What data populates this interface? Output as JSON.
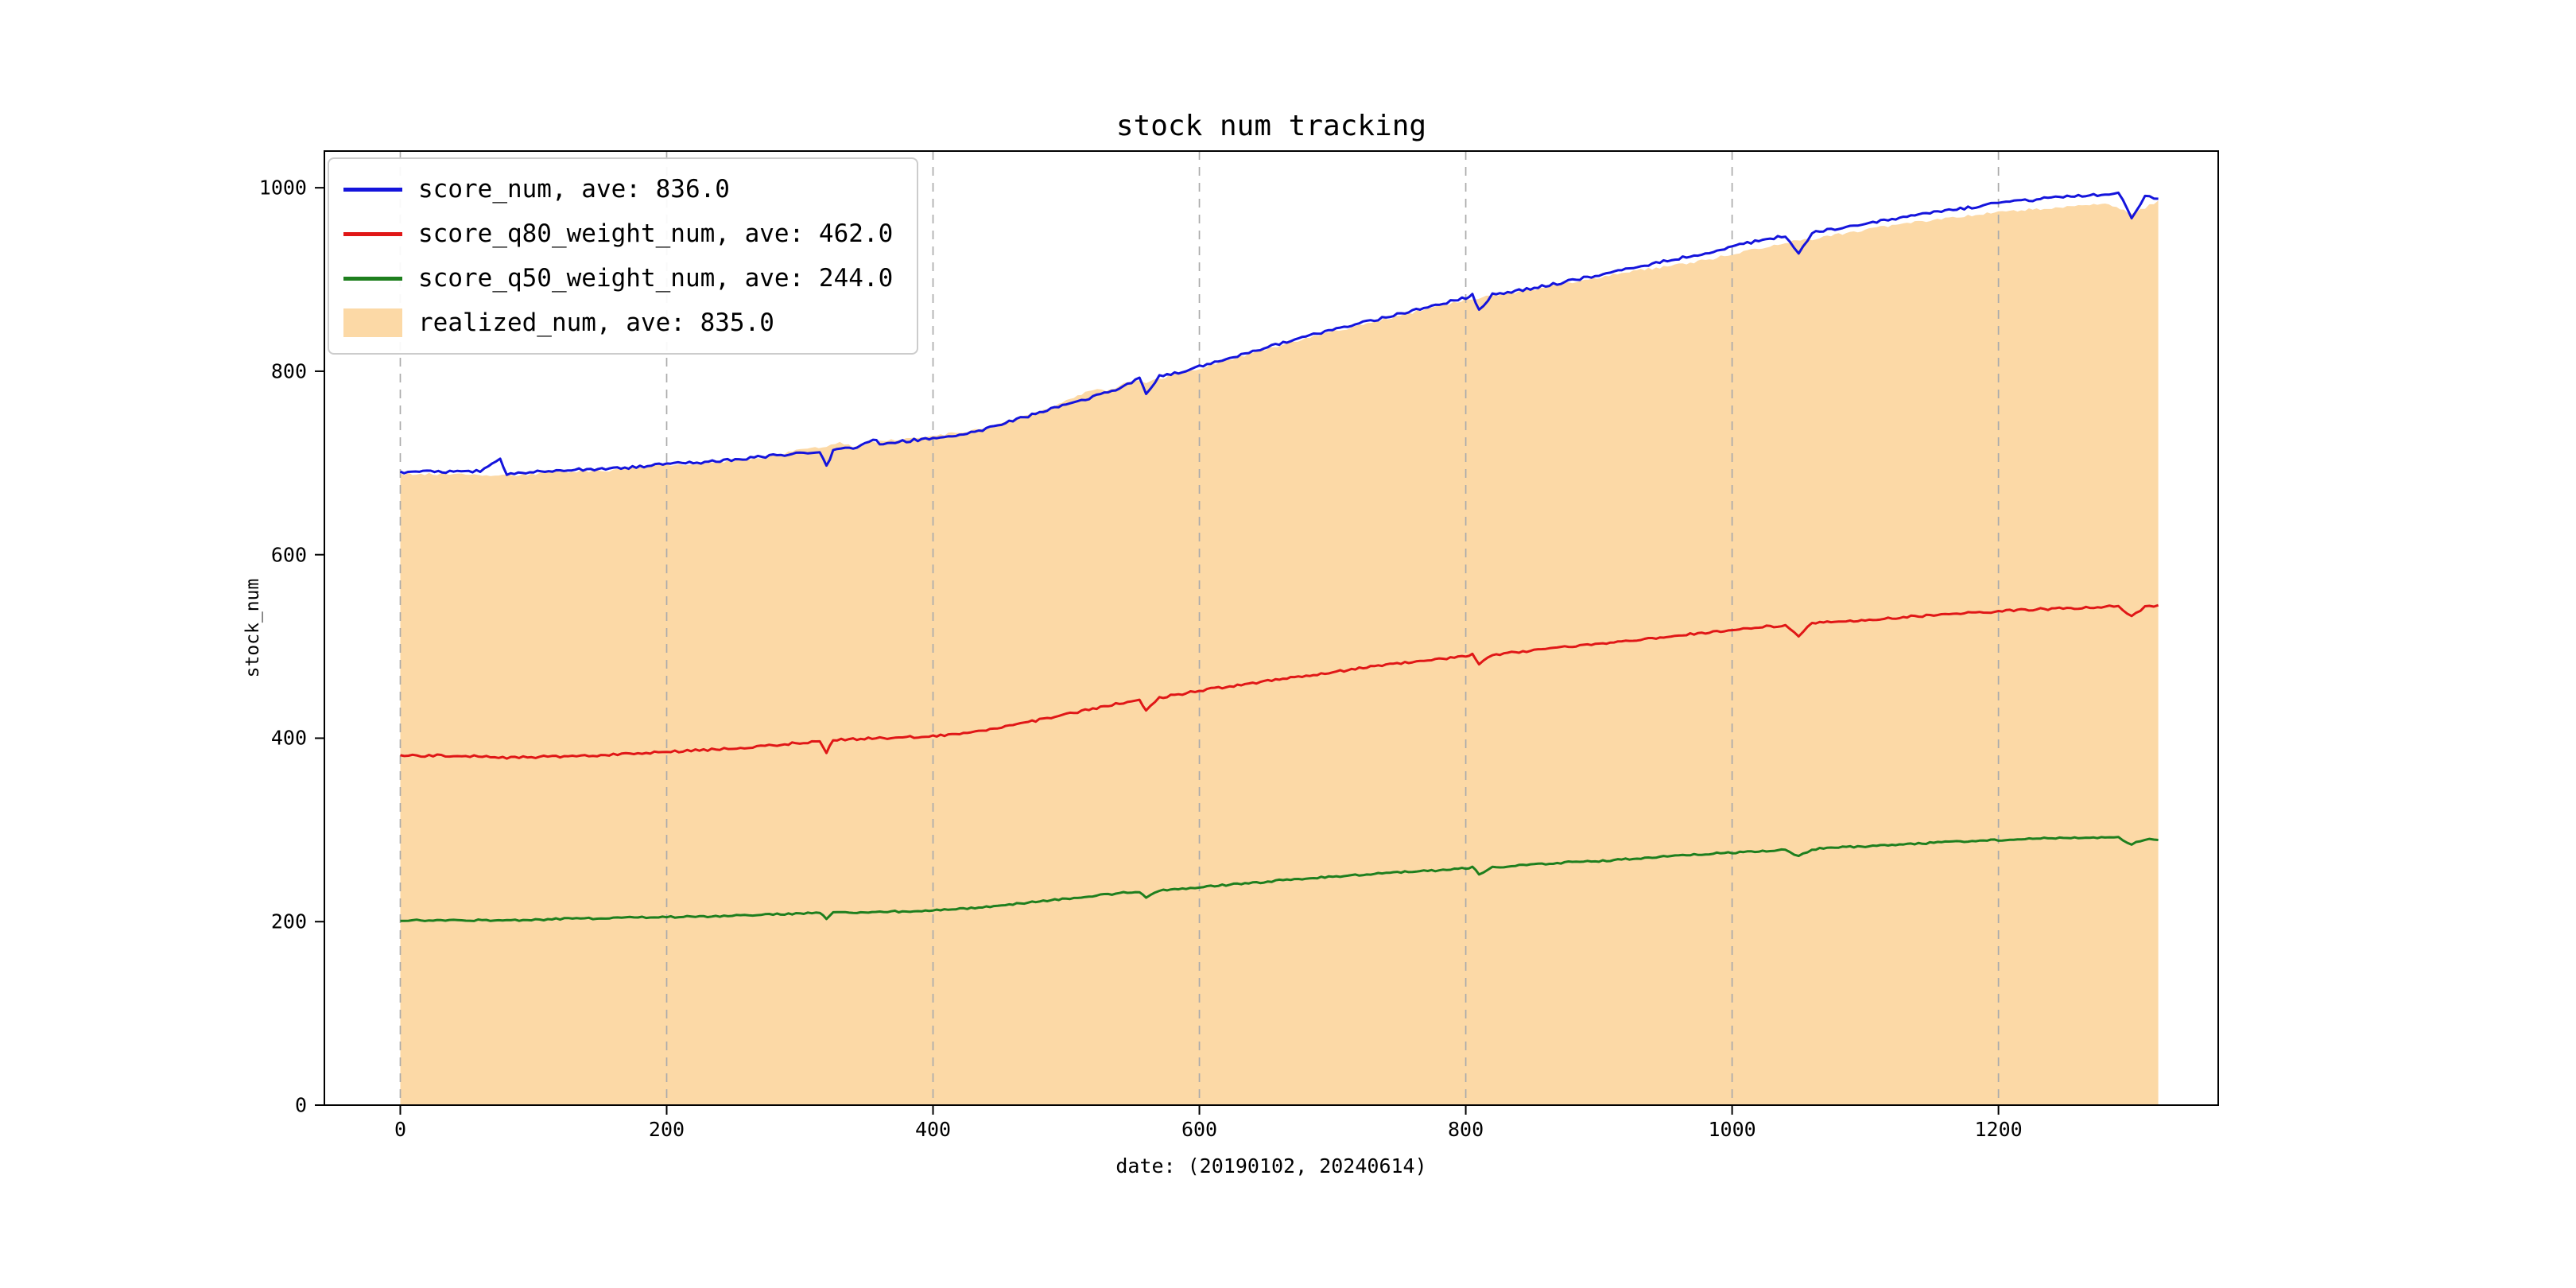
{
  "chart_data": {
    "type": "line",
    "title": "stock num tracking",
    "xlabel": "date: (20190102, 20240614)",
    "ylabel": "stock_num",
    "xlim": [
      -57,
      1365
    ],
    "ylim": [
      0,
      1040
    ],
    "x_ticks": [
      0,
      200,
      400,
      600,
      800,
      1000,
      1200
    ],
    "y_ticks": [
      0,
      200,
      400,
      600,
      800,
      1000
    ],
    "grid": {
      "vertical_dashed": true,
      "color": "#ababab"
    },
    "legend_position": "upper left",
    "series": [
      {
        "name": "score_num, ave: 836.0",
        "type": "line",
        "color": "#1414dc",
        "points": [
          [
            0,
            690
          ],
          [
            20,
            691
          ],
          [
            40,
            690
          ],
          [
            60,
            691
          ],
          [
            75,
            704
          ],
          [
            80,
            687
          ],
          [
            100,
            691
          ],
          [
            120,
            692
          ],
          [
            140,
            693
          ],
          [
            160,
            694
          ],
          [
            180,
            696
          ],
          [
            200,
            699
          ],
          [
            220,
            700
          ],
          [
            240,
            702
          ],
          [
            260,
            705
          ],
          [
            280,
            708
          ],
          [
            300,
            711
          ],
          [
            315,
            713
          ],
          [
            320,
            696
          ],
          [
            325,
            714
          ],
          [
            340,
            716
          ],
          [
            355,
            726
          ],
          [
            360,
            721
          ],
          [
            380,
            724
          ],
          [
            400,
            727
          ],
          [
            420,
            731
          ],
          [
            440,
            737
          ],
          [
            460,
            746
          ],
          [
            480,
            755
          ],
          [
            500,
            764
          ],
          [
            520,
            772
          ],
          [
            540,
            781
          ],
          [
            555,
            793
          ],
          [
            560,
            776
          ],
          [
            570,
            795
          ],
          [
            590,
            800
          ],
          [
            600,
            805
          ],
          [
            620,
            813
          ],
          [
            640,
            822
          ],
          [
            660,
            830
          ],
          [
            680,
            838
          ],
          [
            700,
            845
          ],
          [
            720,
            852
          ],
          [
            740,
            859
          ],
          [
            760,
            866
          ],
          [
            780,
            873
          ],
          [
            800,
            880
          ],
          [
            805,
            884
          ],
          [
            810,
            866
          ],
          [
            820,
            884
          ],
          [
            840,
            888
          ],
          [
            860,
            893
          ],
          [
            880,
            899
          ],
          [
            900,
            905
          ],
          [
            920,
            911
          ],
          [
            940,
            917
          ],
          [
            960,
            923
          ],
          [
            980,
            929
          ],
          [
            1000,
            936
          ],
          [
            1020,
            942
          ],
          [
            1040,
            948
          ],
          [
            1050,
            927
          ],
          [
            1060,
            951
          ],
          [
            1080,
            956
          ],
          [
            1100,
            961
          ],
          [
            1120,
            966
          ],
          [
            1140,
            971
          ],
          [
            1160,
            975
          ],
          [
            1180,
            979
          ],
          [
            1200,
            983
          ],
          [
            1220,
            986
          ],
          [
            1240,
            989
          ],
          [
            1260,
            991
          ],
          [
            1280,
            993
          ],
          [
            1290,
            996
          ],
          [
            1300,
            966
          ],
          [
            1310,
            991
          ],
          [
            1320,
            988
          ]
        ]
      },
      {
        "name": "score_q80_weight_num, ave: 462.0",
        "type": "line",
        "color": "#e01717",
        "points": [
          [
            0,
            381
          ],
          [
            40,
            381
          ],
          [
            80,
            379
          ],
          [
            120,
            380
          ],
          [
            160,
            382
          ],
          [
            200,
            385
          ],
          [
            240,
            388
          ],
          [
            280,
            392
          ],
          [
            300,
            395
          ],
          [
            315,
            397
          ],
          [
            320,
            385
          ],
          [
            325,
            398
          ],
          [
            340,
            399
          ],
          [
            360,
            400
          ],
          [
            380,
            401
          ],
          [
            400,
            402
          ],
          [
            420,
            405
          ],
          [
            440,
            409
          ],
          [
            460,
            414
          ],
          [
            480,
            420
          ],
          [
            500,
            426
          ],
          [
            520,
            432
          ],
          [
            540,
            438
          ],
          [
            555,
            442
          ],
          [
            560,
            431
          ],
          [
            570,
            444
          ],
          [
            590,
            449
          ],
          [
            600,
            452
          ],
          [
            620,
            456
          ],
          [
            640,
            460
          ],
          [
            660,
            464
          ],
          [
            680,
            468
          ],
          [
            700,
            472
          ],
          [
            720,
            476
          ],
          [
            740,
            480
          ],
          [
            760,
            483
          ],
          [
            780,
            486
          ],
          [
            800,
            489
          ],
          [
            805,
            491
          ],
          [
            810,
            481
          ],
          [
            820,
            491
          ],
          [
            840,
            494
          ],
          [
            860,
            497
          ],
          [
            880,
            500
          ],
          [
            900,
            503
          ],
          [
            920,
            506
          ],
          [
            940,
            509
          ],
          [
            960,
            512
          ],
          [
            980,
            515
          ],
          [
            1000,
            518
          ],
          [
            1020,
            521
          ],
          [
            1040,
            523
          ],
          [
            1050,
            512
          ],
          [
            1060,
            525
          ],
          [
            1080,
            527
          ],
          [
            1100,
            529
          ],
          [
            1120,
            531
          ],
          [
            1140,
            533
          ],
          [
            1160,
            535
          ],
          [
            1180,
            537
          ],
          [
            1200,
            538
          ],
          [
            1220,
            540
          ],
          [
            1240,
            541
          ],
          [
            1260,
            542
          ],
          [
            1280,
            543
          ],
          [
            1290,
            544
          ],
          [
            1300,
            533
          ],
          [
            1310,
            543
          ],
          [
            1320,
            545
          ]
        ]
      },
      {
        "name": "score_q50_weight_num, ave: 244.0",
        "type": "line",
        "color": "#1e7f1e",
        "points": [
          [
            0,
            201
          ],
          [
            40,
            202
          ],
          [
            80,
            201
          ],
          [
            120,
            203
          ],
          [
            160,
            204
          ],
          [
            200,
            205
          ],
          [
            240,
            206
          ],
          [
            280,
            208
          ],
          [
            300,
            209
          ],
          [
            315,
            210
          ],
          [
            320,
            203
          ],
          [
            325,
            210
          ],
          [
            340,
            210
          ],
          [
            360,
            211
          ],
          [
            380,
            211
          ],
          [
            400,
            212
          ],
          [
            420,
            214
          ],
          [
            440,
            216
          ],
          [
            460,
            219
          ],
          [
            480,
            222
          ],
          [
            500,
            225
          ],
          [
            520,
            228
          ],
          [
            540,
            231
          ],
          [
            555,
            233
          ],
          [
            560,
            227
          ],
          [
            570,
            234
          ],
          [
            590,
            236
          ],
          [
            600,
            238
          ],
          [
            620,
            240
          ],
          [
            640,
            242
          ],
          [
            660,
            245
          ],
          [
            680,
            247
          ],
          [
            700,
            249
          ],
          [
            720,
            251
          ],
          [
            740,
            253
          ],
          [
            760,
            255
          ],
          [
            780,
            256
          ],
          [
            800,
            258
          ],
          [
            805,
            259
          ],
          [
            810,
            252
          ],
          [
            820,
            259
          ],
          [
            840,
            261
          ],
          [
            860,
            263
          ],
          [
            880,
            265
          ],
          [
            900,
            266
          ],
          [
            920,
            268
          ],
          [
            940,
            270
          ],
          [
            960,
            272
          ],
          [
            980,
            274
          ],
          [
            1000,
            275
          ],
          [
            1020,
            277
          ],
          [
            1040,
            278
          ],
          [
            1050,
            271
          ],
          [
            1060,
            279
          ],
          [
            1080,
            281
          ],
          [
            1100,
            282
          ],
          [
            1120,
            284
          ],
          [
            1140,
            285
          ],
          [
            1160,
            287
          ],
          [
            1180,
            288
          ],
          [
            1200,
            289
          ],
          [
            1220,
            290
          ],
          [
            1240,
            291
          ],
          [
            1260,
            291
          ],
          [
            1280,
            292
          ],
          [
            1290,
            292
          ],
          [
            1300,
            284
          ],
          [
            1310,
            290
          ],
          [
            1320,
            289
          ]
        ]
      },
      {
        "name": "realized_num, ave: 835.0",
        "type": "area",
        "color": "#fcd9a6",
        "points": [
          [
            0,
            688
          ],
          [
            40,
            688
          ],
          [
            80,
            686
          ],
          [
            120,
            690
          ],
          [
            160,
            692
          ],
          [
            200,
            698
          ],
          [
            240,
            701
          ],
          [
            260,
            704
          ],
          [
            280,
            708
          ],
          [
            300,
            714
          ],
          [
            320,
            718
          ],
          [
            330,
            722
          ],
          [
            340,
            718
          ],
          [
            360,
            724
          ],
          [
            380,
            727
          ],
          [
            400,
            730
          ],
          [
            420,
            733
          ],
          [
            440,
            738
          ],
          [
            460,
            747
          ],
          [
            480,
            756
          ],
          [
            500,
            768
          ],
          [
            520,
            780
          ],
          [
            530,
            778
          ],
          [
            540,
            784
          ],
          [
            550,
            790
          ],
          [
            560,
            788
          ],
          [
            580,
            796
          ],
          [
            600,
            803
          ],
          [
            640,
            820
          ],
          [
            680,
            836
          ],
          [
            720,
            850
          ],
          [
            760,
            864
          ],
          [
            800,
            878
          ],
          [
            840,
            886
          ],
          [
            880,
            897
          ],
          [
            920,
            908
          ],
          [
            940,
            912
          ],
          [
            960,
            916
          ],
          [
            980,
            921
          ],
          [
            1000,
            928
          ],
          [
            1020,
            934
          ],
          [
            1040,
            940
          ],
          [
            1060,
            944
          ],
          [
            1080,
            949
          ],
          [
            1100,
            954
          ],
          [
            1120,
            959
          ],
          [
            1140,
            963
          ],
          [
            1160,
            967
          ],
          [
            1180,
            970
          ],
          [
            1200,
            973
          ],
          [
            1220,
            976
          ],
          [
            1240,
            978
          ],
          [
            1260,
            980
          ],
          [
            1280,
            982
          ],
          [
            1300,
            972
          ],
          [
            1310,
            978
          ],
          [
            1320,
            986
          ]
        ]
      }
    ]
  }
}
